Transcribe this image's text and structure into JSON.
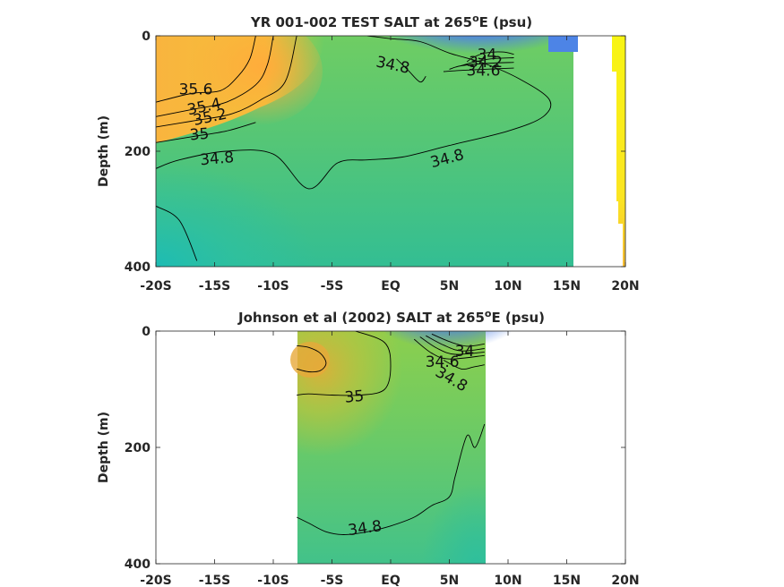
{
  "chart_data": [
    {
      "type": "heatmap",
      "title_main": "YR 001-002 TEST SALT at 265",
      "title_sup": "o",
      "title_tail": "E (psu)",
      "ylabel": "Depth (m)",
      "xlabel": "",
      "x_ticks": [
        "-20S",
        "-15S",
        "-10S",
        "-5S",
        "EQ",
        "5N",
        "10N",
        "15N",
        "20N"
      ],
      "x_tick_values": [
        -20,
        -15,
        -10,
        -5,
        0,
        5,
        10,
        15,
        20
      ],
      "y_ticks": [
        "0",
        "200",
        "400"
      ],
      "y_tick_values": [
        0,
        200,
        400
      ],
      "xlim": [
        -20,
        20
      ],
      "ylim": [
        0,
        400
      ],
      "y_reversed": true,
      "data_extent_lat": [
        -20,
        15.5
      ],
      "colormap": "parula",
      "contours": [
        {
          "label": "34",
          "lat": [
            6.5,
            7.0,
            8.0,
            9.5,
            10.5
          ],
          "depth": [
            45,
            38,
            30,
            28,
            32
          ]
        },
        {
          "label": "34.2",
          "lat": [
            6.0,
            7.0,
            8.5,
            10.5
          ],
          "depth": [
            52,
            46,
            40,
            38
          ]
        },
        {
          "label": "34.4",
          "lat": [
            5.0,
            6.0,
            8.0,
            10.5
          ],
          "depth": [
            58,
            52,
            48,
            46
          ]
        },
        {
          "label": "34.6",
          "lat": [
            4.5,
            6.0,
            8.0,
            10.5
          ],
          "depth": [
            62,
            60,
            58,
            56
          ]
        },
        {
          "label": "34.8",
          "lat": [
            -2.0,
            0.0,
            2.5,
            5.0,
            8.0,
            11.0,
            13.5,
            13.0,
            10.0,
            5.0,
            1.0,
            -2.0,
            -4.5,
            -7.0,
            -10.0,
            -14.0,
            -18.0,
            -20.0
          ],
          "depth": [
            0,
            5,
            10,
            30,
            48,
            75,
            110,
            140,
            165,
            190,
            210,
            215,
            220,
            265,
            205,
            200,
            215,
            230
          ]
        },
        {
          "label": "34.8",
          "lat": [
            0.5,
            1.5,
            2.5,
            3.0
          ],
          "depth": [
            40,
            60,
            80,
            70
          ]
        },
        {
          "label": "35",
          "lat": [
            -20.0,
            -17.0,
            -14.0,
            -11.5
          ],
          "depth": [
            185,
            175,
            165,
            150
          ]
        },
        {
          "label": "35.2",
          "lat": [
            -20.0,
            -17.0,
            -13.5,
            -11.0,
            -9.0,
            -8.0
          ],
          "depth": [
            158,
            148,
            135,
            110,
            80,
            0
          ]
        },
        {
          "label": "35.4",
          "lat": [
            -20.0,
            -17.0,
            -14.0,
            -11.5,
            -10.5,
            -10.0
          ],
          "depth": [
            140,
            128,
            115,
            85,
            50,
            0
          ]
        },
        {
          "label": "35.6",
          "lat": [
            -20.0,
            -17.0,
            -14.5,
            -13.0,
            -12.0,
            -11.5
          ],
          "depth": [
            115,
            100,
            95,
            70,
            40,
            0
          ]
        },
        {
          "label": "",
          "lat": [
            -20.0,
            -18.0,
            -16.5
          ],
          "depth": [
            295,
            320,
            390
          ]
        }
      ],
      "contour_labels": [
        {
          "text": "34",
          "lat": 8.2,
          "depth": 32,
          "angle": 0
        },
        {
          "text": "34.2",
          "lat": 8.1,
          "depth": 45,
          "angle": 0
        },
        {
          "text": "34.6",
          "lat": 7.9,
          "depth": 60,
          "angle": 0
        },
        {
          "text": "34.8",
          "lat": 0.2,
          "depth": 50,
          "angle": 12
        },
        {
          "text": "34.8",
          "lat": 4.8,
          "depth": 212,
          "angle": -15
        },
        {
          "text": "34.8",
          "lat": -14.8,
          "depth": 212,
          "angle": -5
        },
        {
          "text": "35",
          "lat": -16.3,
          "depth": 170,
          "angle": -5
        },
        {
          "text": "35.2",
          "lat": -15.4,
          "depth": 140,
          "angle": -12
        },
        {
          "text": "35.4",
          "lat": -15.9,
          "depth": 122,
          "angle": -12
        },
        {
          "text": "35.6",
          "lat": -16.6,
          "depth": 92,
          "angle": 0
        }
      ]
    },
    {
      "type": "heatmap",
      "title_main": "Johnson et al (2002) SALT at 265",
      "title_sup": "o",
      "title_tail": "E (psu)",
      "ylabel": "Depth (m)",
      "xlabel": "",
      "x_ticks": [
        "-20S",
        "-15S",
        "-10S",
        "-5S",
        "EQ",
        "5N",
        "10N",
        "15N",
        "20N"
      ],
      "x_tick_values": [
        -20,
        -15,
        -10,
        -5,
        0,
        5,
        10,
        15,
        20
      ],
      "y_ticks": [
        "0",
        "200",
        "400"
      ],
      "y_tick_values": [
        0,
        200,
        400
      ],
      "xlim": [
        -20,
        20
      ],
      "ylim": [
        0,
        400
      ],
      "y_reversed": true,
      "data_extent_lat": [
        -8,
        8
      ],
      "colormap": "parula",
      "contours": [
        {
          "label": "34",
          "lat": [
            3.5,
            5.0,
            6.5,
            8.0
          ],
          "depth": [
            5,
            18,
            26,
            22
          ]
        },
        {
          "label": "",
          "lat": [
            3.0,
            4.5,
            6.0,
            8.0
          ],
          "depth": [
            8,
            24,
            34,
            30
          ]
        },
        {
          "label": "",
          "lat": [
            2.5,
            4.0,
            5.5,
            8.0
          ],
          "depth": [
            10,
            30,
            40,
            36
          ]
        },
        {
          "label": "34.6",
          "lat": [
            2.0,
            3.5,
            5.0,
            8.0
          ],
          "depth": [
            14,
            38,
            48,
            42
          ]
        },
        {
          "label": "34.8",
          "lat": [
            4.5,
            6.0,
            7.0,
            8.0
          ],
          "depth": [
            50,
            65,
            62,
            58
          ]
        },
        {
          "label": "35",
          "lat": [
            -3.0,
            -0.5,
            0.0,
            -0.5,
            -2.5,
            -5.0,
            -7.0,
            -8.0
          ],
          "depth": [
            0,
            20,
            60,
            100,
            110,
            110,
            108,
            110
          ]
        },
        {
          "label": "",
          "lat": [
            -8.0,
            -7.0,
            -6.0,
            -5.5,
            -6.0,
            -7.0,
            -8.0
          ],
          "depth": [
            25,
            28,
            38,
            55,
            68,
            70,
            65
          ]
        },
        {
          "label": "34.8",
          "lat": [
            -8.0,
            -7.0,
            -5.5,
            -4.0,
            -2.0,
            0.0,
            2.0,
            3.5,
            5.0,
            5.5,
            6.5,
            7.2,
            8.0
          ],
          "depth": [
            320,
            330,
            345,
            350,
            345,
            335,
            320,
            300,
            285,
            250,
            180,
            200,
            160
          ]
        }
      ],
      "contour_labels": [
        {
          "text": "34",
          "lat": 6.3,
          "depth": 34,
          "angle": 0
        },
        {
          "text": "34.6",
          "lat": 4.4,
          "depth": 52,
          "angle": 0
        },
        {
          "text": "34.8",
          "lat": 5.2,
          "depth": 82,
          "angle": 30
        },
        {
          "text": "35",
          "lat": -3.1,
          "depth": 112,
          "angle": -5
        },
        {
          "text": "34.8",
          "lat": -2.2,
          "depth": 338,
          "angle": -8
        }
      ]
    }
  ]
}
